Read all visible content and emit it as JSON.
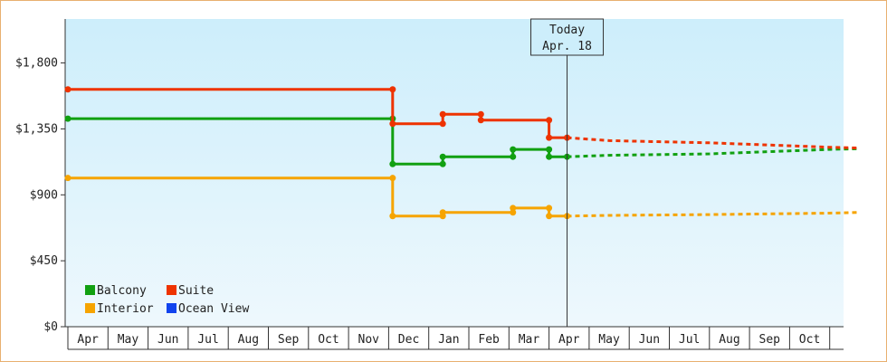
{
  "chart_data": {
    "type": "line",
    "title": "",
    "xlabel": "",
    "ylabel": "",
    "ylim": [
      0,
      2100
    ],
    "y_ticks": [
      0,
      450,
      900,
      1350,
      1800
    ],
    "y_tick_labels": [
      "$0",
      "$450",
      "$900",
      "$1,350",
      "$1,800"
    ],
    "x_months": [
      "Apr",
      "May",
      "Jun",
      "Jul",
      "Aug",
      "Sep",
      "Oct",
      "Nov",
      "Dec",
      "Jan",
      "Feb",
      "Mar",
      "Apr",
      "May",
      "Jun",
      "Jul",
      "Aug",
      "Sep",
      "Oct"
    ],
    "grid": false,
    "legend_position": "bottom-left",
    "today_marker": {
      "line1": "Today",
      "line2": "Apr. 18",
      "x": 12.45
    },
    "series": [
      {
        "name": "Balcony",
        "color": "#11a011",
        "step_points": [
          [
            0,
            1420
          ],
          [
            8.1,
            1420
          ],
          [
            8.1,
            1110
          ],
          [
            9.35,
            1110
          ],
          [
            9.35,
            1160
          ],
          [
            11.1,
            1160
          ],
          [
            11.1,
            1210
          ],
          [
            12.0,
            1210
          ],
          [
            12.0,
            1160
          ],
          [
            12.45,
            1160
          ]
        ],
        "projection": [
          [
            12.45,
            1160
          ],
          [
            13.5,
            1170
          ],
          [
            16.0,
            1180
          ],
          [
            19.0,
            1210
          ],
          [
            19.7,
            1215
          ]
        ]
      },
      {
        "name": "Suite",
        "color": "#ee3300",
        "step_points": [
          [
            0,
            1620
          ],
          [
            8.1,
            1620
          ],
          [
            8.1,
            1385
          ],
          [
            9.35,
            1385
          ],
          [
            9.35,
            1450
          ],
          [
            10.3,
            1450
          ],
          [
            10.3,
            1410
          ],
          [
            12.0,
            1410
          ],
          [
            12.0,
            1290
          ],
          [
            12.45,
            1290
          ]
        ],
        "projection": [
          [
            12.45,
            1290
          ],
          [
            13.5,
            1270
          ],
          [
            16.0,
            1255
          ],
          [
            19.0,
            1225
          ],
          [
            19.7,
            1220
          ]
        ]
      },
      {
        "name": "Interior",
        "color": "#f6a400",
        "step_points": [
          [
            0,
            1015
          ],
          [
            8.1,
            1015
          ],
          [
            8.1,
            755
          ],
          [
            9.35,
            755
          ],
          [
            9.35,
            780
          ],
          [
            11.1,
            780
          ],
          [
            11.1,
            810
          ],
          [
            12.0,
            810
          ],
          [
            12.0,
            755
          ],
          [
            12.45,
            755
          ]
        ],
        "projection": [
          [
            12.45,
            755
          ],
          [
            13.5,
            760
          ],
          [
            16.0,
            765
          ],
          [
            19.0,
            775
          ],
          [
            19.7,
            780
          ]
        ]
      },
      {
        "name": "Ocean View",
        "color": "#1144ee",
        "step_points": [],
        "projection": []
      }
    ]
  }
}
